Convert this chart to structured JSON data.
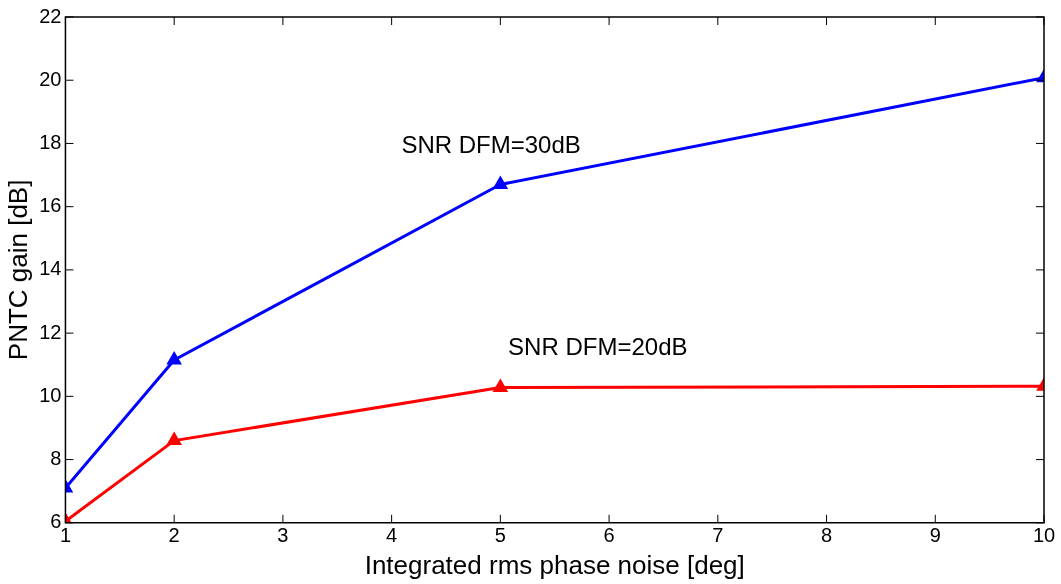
{
  "chart_data": {
    "type": "line",
    "xlabel": "Integrated rms phase noise [deg]",
    "ylabel": "PNTC gain [dB]",
    "x": [
      1,
      2,
      5,
      10
    ],
    "series": [
      {
        "color": "#0000ff",
        "values": [
          7.1,
          11.15,
          16.7,
          20.08
        ]
      },
      {
        "color": "#ff0000",
        "values": [
          6.05,
          8.6,
          10.28,
          10.32
        ]
      }
    ],
    "xlim": [
      1,
      10
    ],
    "xticks": [
      1,
      2,
      3,
      4,
      5,
      6,
      7,
      8,
      9,
      10
    ],
    "ylim": [
      6,
      22
    ],
    "yticks": [
      6,
      8,
      10,
      12,
      14,
      16,
      18,
      20,
      22
    ],
    "grid": false,
    "legend": false,
    "marker": "triangle",
    "line_style": "solid",
    "annotations": [
      "SNR DFM=30dB",
      "SNR DFM=20dB"
    ]
  }
}
